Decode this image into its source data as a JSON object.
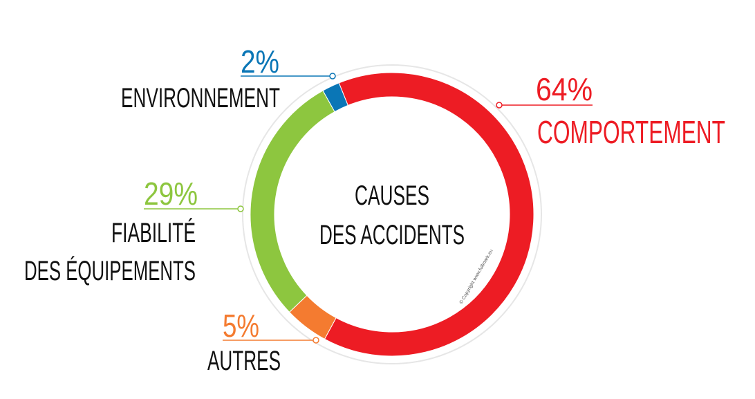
{
  "chart_data": {
    "type": "pie",
    "donut": true,
    "title": "CAUSES\nDES ACCIDENTS",
    "categories": [
      "COMPORTEMENT",
      "AUTRES",
      "FIABILITÉ\nDES ÉQUIPEMENTS",
      "ENVIRONNEMENT"
    ],
    "values": [
      64,
      5,
      29,
      2
    ],
    "value_labels": [
      "64%",
      "5%",
      "29%",
      "2%"
    ],
    "colors": [
      "#ed1c24",
      "#f47b30",
      "#8dc63f",
      "#0a76b6"
    ],
    "copyright": "© Copyright www.fullmark.eu"
  }
}
